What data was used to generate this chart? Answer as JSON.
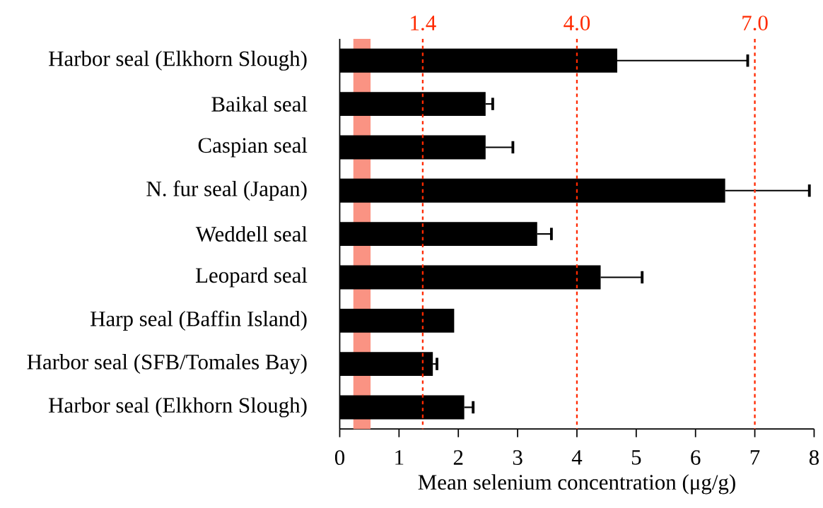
{
  "chart_data": {
    "type": "bar",
    "orientation": "horizontal",
    "xlabel": "Mean selenium concentration (μg/g)",
    "categories": [
      "Harbor seal (Elkhorn Slough)",
      "Baikal seal",
      "Caspian seal",
      "N. fur seal (Japan)",
      "Weddell seal",
      "Leopard seal",
      "Harp seal (Baffin Island)",
      "Harbor seal (SFB/Tomales Bay)",
      "Harbor seal (Elkhorn Slough)"
    ],
    "values": [
      4.68,
      2.46,
      2.46,
      6.5,
      3.33,
      4.4,
      1.93,
      1.57,
      2.1
    ],
    "errors": [
      [
        4.68,
        6.88
      ],
      [
        2.46,
        2.58
      ],
      [
        2.46,
        2.92
      ],
      [
        6.5,
        7.92
      ],
      [
        3.33,
        3.57
      ],
      [
        4.4,
        5.1
      ],
      null,
      [
        1.57,
        1.64
      ],
      [
        2.1,
        2.25
      ]
    ],
    "color": "#000000",
    "xlim": [
      0,
      8
    ],
    "xticks": [
      0,
      1,
      2,
      3,
      4,
      5,
      6,
      7,
      8
    ],
    "ref_lines": [
      {
        "axis": "x",
        "value": 1.4,
        "label": "1.4",
        "color": "#ff2a00",
        "line_style": "dotted"
      },
      {
        "axis": "x",
        "value": 4.0,
        "label": "4.0",
        "color": "#ff2a00",
        "line_style": "dotted"
      },
      {
        "axis": "x",
        "value": 7.0,
        "label": "7.0",
        "color": "#ff2a00",
        "line_style": "dotted"
      }
    ],
    "bands": [
      {
        "axis": "x",
        "from": 0.23,
        "to": 0.52,
        "color": "#fa9383"
      }
    ]
  }
}
